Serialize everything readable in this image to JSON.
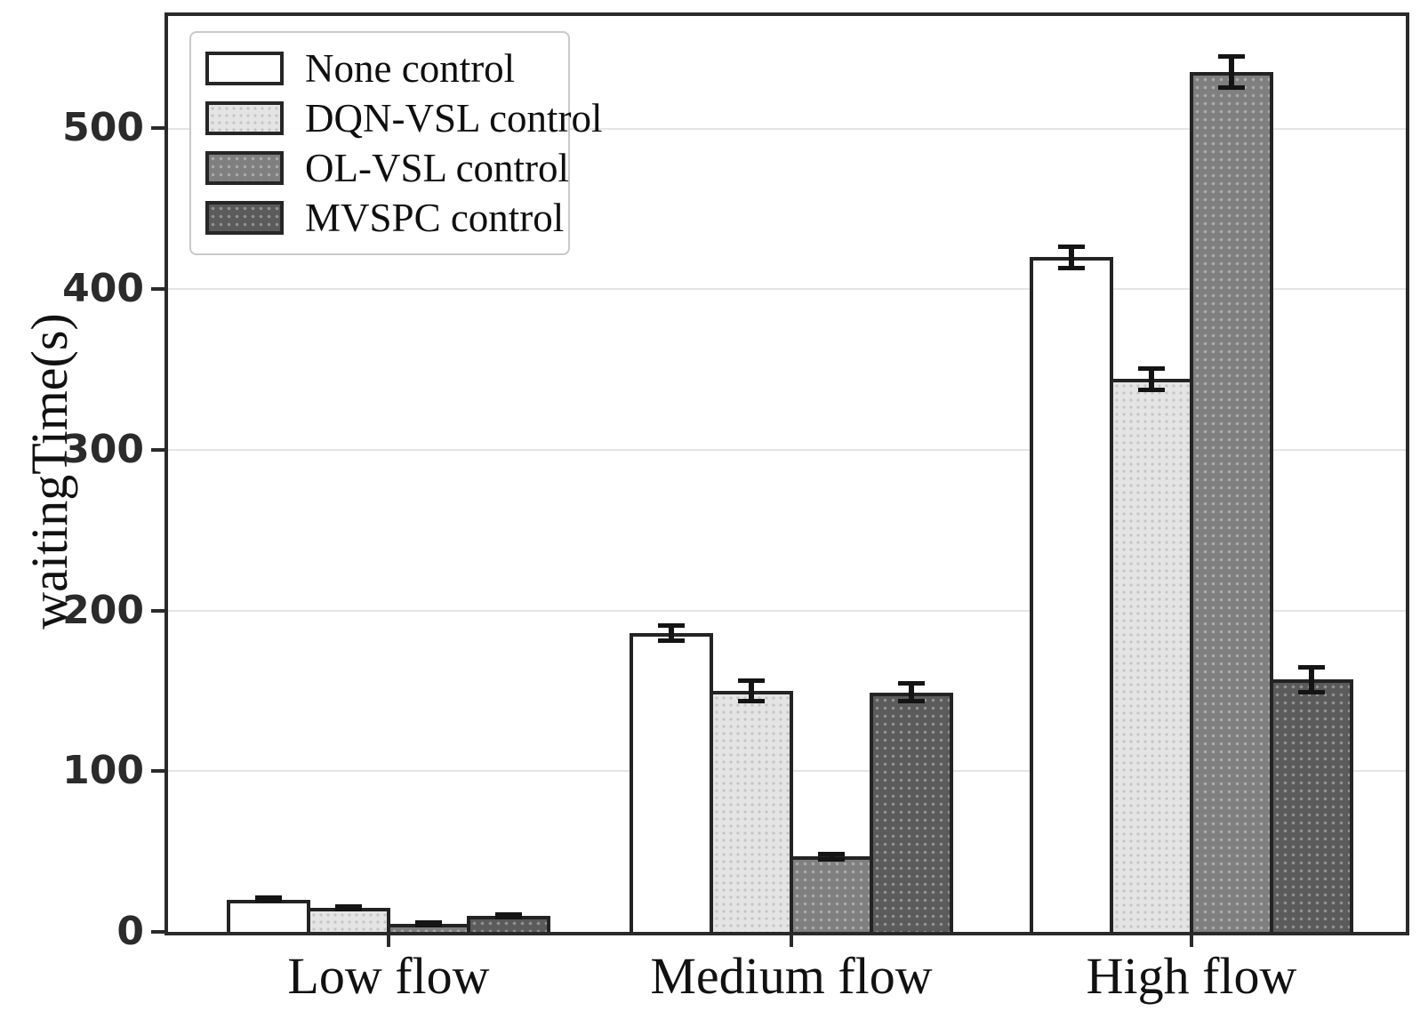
{
  "chart_data": {
    "type": "bar",
    "title": "",
    "xlabel": "",
    "ylabel": "waitingTime(s)",
    "categories": [
      "Low flow",
      "Medium flow",
      "High flow"
    ],
    "series": [
      {
        "name": "None control",
        "values": [
          20,
          186,
          420
        ],
        "errors": [
          2,
          6,
          8
        ],
        "fill": "#ffffff",
        "pattern": "plain"
      },
      {
        "name": "DQN-VSL control",
        "values": [
          15,
          150,
          344
        ],
        "errors": [
          2,
          8,
          8
        ],
        "fill": "#e4e4e4",
        "pattern": "fine-dots"
      },
      {
        "name": "OL-VSL control",
        "values": [
          5,
          47,
          535
        ],
        "errors": [
          2,
          3,
          11
        ],
        "fill": "#7f7f7f",
        "pattern": "light-dots"
      },
      {
        "name": "MVSPC control",
        "values": [
          10,
          149,
          157
        ],
        "errors": [
          2,
          7,
          9
        ],
        "fill": "#5b5b5b",
        "pattern": "light-dots"
      }
    ],
    "ylim": [
      0,
      570
    ],
    "yticks": [
      0,
      100,
      200,
      300,
      400,
      500
    ],
    "grid": true,
    "error_bars": true,
    "legend_position": "upper-left",
    "colors": {
      "frame": "#2a2a2a",
      "grid": "#e4e4e4",
      "bar_border": "#232323",
      "error": "#141414",
      "text": "#111111"
    }
  }
}
